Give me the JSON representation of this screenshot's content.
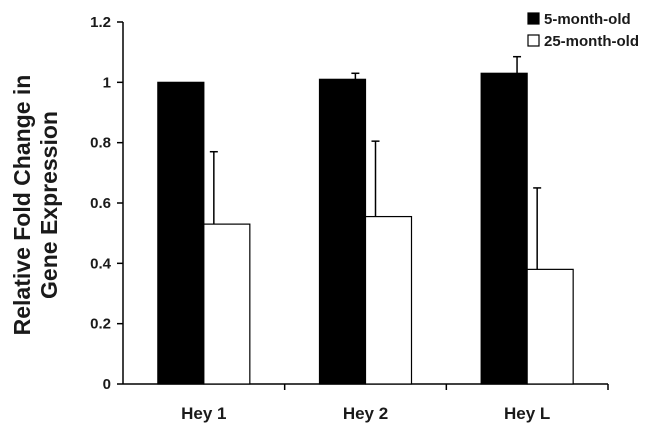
{
  "chart_data": {
    "type": "bar",
    "title": "",
    "xlabel": "",
    "ylabel_lines": [
      "Relative Fold Change in",
      "Gene Expression"
    ],
    "categories": [
      "Hey 1",
      "Hey 2",
      "Hey L"
    ],
    "ylim": [
      0,
      1.2
    ],
    "yticks": [
      "0",
      "0.2",
      "0.4",
      "0.6",
      "0.8",
      "1",
      "1.2"
    ],
    "ytick_values": [
      0,
      0.2,
      0.4,
      0.6,
      0.8,
      1.0,
      1.2
    ],
    "grid": false,
    "legend_position": "top-right",
    "series": [
      {
        "name": "5-month-old",
        "color": "#000000",
        "values": [
          1.0,
          1.01,
          1.03
        ],
        "error": [
          0.0,
          0.02,
          0.055
        ]
      },
      {
        "name": "25-month-old",
        "color": "#ffffff",
        "values": [
          0.53,
          0.555,
          0.38
        ],
        "error": [
          0.24,
          0.25,
          0.27
        ]
      }
    ]
  }
}
